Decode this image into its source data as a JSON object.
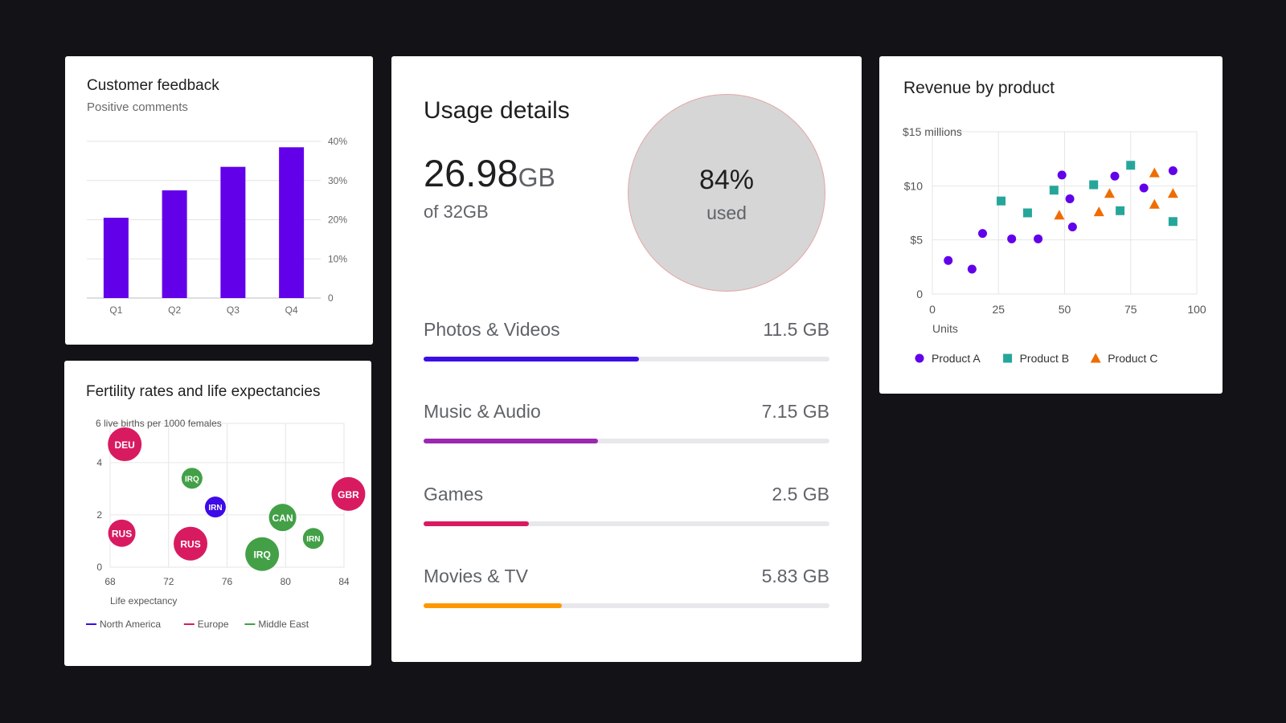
{
  "feedback": {
    "title": "Customer feedback",
    "subtitle": "Positive comments"
  },
  "fertility": {
    "title": "Fertility rates and life expectancies"
  },
  "usage": {
    "title": "Usage details",
    "used_value": "26.98",
    "used_unit": "GB",
    "capacity": "of 32GB",
    "percent_label": "84%",
    "percent_caption": "used",
    "categories": [
      {
        "name": "Photos & Videos",
        "size": "11.5 GB",
        "fraction": 0.53,
        "color": "#3b0ee8"
      },
      {
        "name": "Music & Audio",
        "size": "7.15 GB",
        "fraction": 0.43,
        "color": "#9c27b0"
      },
      {
        "name": "Games",
        "size": "2.5 GB",
        "fraction": 0.26,
        "color": "#d81b60"
      },
      {
        "name": "Movies & TV",
        "size": "5.83 GB",
        "fraction": 0.34,
        "color": "#ff9800"
      }
    ]
  },
  "revenue": {
    "title": "Revenue by product"
  },
  "chart_data": [
    {
      "id": "feedback",
      "type": "bar",
      "title": "Customer feedback",
      "subtitle": "Positive comments",
      "categories": [
        "Q1",
        "Q2",
        "Q3",
        "Q4"
      ],
      "values": [
        20.5,
        27.5,
        33.5,
        38.5
      ],
      "y_ticks": [
        "0",
        "10%",
        "20%",
        "30%",
        "40%"
      ],
      "ylim": [
        0,
        40
      ],
      "grid": true,
      "color": "#6200ea"
    },
    {
      "id": "fertility",
      "type": "scatter",
      "title": "Fertility rates and life expectancies",
      "xlabel": "Life expectancy",
      "ylabel": "6 live births per 1000 females",
      "x_ticks": [
        "68",
        "72",
        "76",
        "80",
        "84"
      ],
      "y_ticks": [
        "0",
        "2",
        "4"
      ],
      "xlim": [
        68,
        84
      ],
      "ylim": [
        0,
        5.5
      ],
      "legend_position": "bottom-left",
      "grid": true,
      "series": [
        {
          "name": "North America",
          "color": "#3d0ae8",
          "points": [
            {
              "x": 75.2,
              "y": 2.3,
              "label": "IRN",
              "size": 1
            }
          ]
        },
        {
          "name": "Europe",
          "color": "#d81b60",
          "points": [
            {
              "x": 69.0,
              "y": 4.7,
              "label": "DEU",
              "size": 3
            },
            {
              "x": 68.8,
              "y": 1.3,
              "label": "RUS",
              "size": 2
            },
            {
              "x": 73.5,
              "y": 0.9,
              "label": "RUS",
              "size": 3
            },
            {
              "x": 84.3,
              "y": 2.8,
              "label": "GBR",
              "size": 3
            }
          ]
        },
        {
          "name": "Middle East",
          "color": "#43a047",
          "points": [
            {
              "x": 73.6,
              "y": 3.4,
              "label": "IRQ",
              "size": 1
            },
            {
              "x": 79.8,
              "y": 1.9,
              "label": "CAN",
              "size": 2
            },
            {
              "x": 78.4,
              "y": 0.5,
              "label": "IRQ",
              "size": 3
            },
            {
              "x": 81.9,
              "y": 1.1,
              "label": "IRN",
              "size": 1
            }
          ]
        }
      ]
    },
    {
      "id": "revenue",
      "type": "scatter",
      "title": "Revenue by product",
      "xlabel": "Units",
      "ylabel": "$15 millions",
      "x_ticks": [
        "0",
        "25",
        "50",
        "75",
        "100"
      ],
      "y_ticks": [
        "0",
        "$5",
        "$10",
        "$15 millions"
      ],
      "xlim": [
        0,
        100
      ],
      "ylim": [
        0,
        15
      ],
      "legend_position": "bottom",
      "grid": true,
      "series": [
        {
          "name": "Product A",
          "color": "#6200ea",
          "marker": "circle",
          "points": [
            [
              6,
              3.1
            ],
            [
              15,
              2.3
            ],
            [
              19,
              5.6
            ],
            [
              30,
              5.1
            ],
            [
              40,
              5.1
            ],
            [
              49,
              11.0
            ],
            [
              52,
              8.8
            ],
            [
              53,
              6.2
            ],
            [
              69,
              10.9
            ],
            [
              80,
              9.8
            ],
            [
              91,
              11.4
            ]
          ]
        },
        {
          "name": "Product B",
          "color": "#26a69a",
          "marker": "square",
          "points": [
            [
              26,
              8.6
            ],
            [
              36,
              7.5
            ],
            [
              46,
              9.6
            ],
            [
              61,
              10.1
            ],
            [
              71,
              7.7
            ],
            [
              75,
              11.9
            ],
            [
              91,
              6.7
            ]
          ]
        },
        {
          "name": "Product C",
          "color": "#ef6c00",
          "marker": "triangle",
          "points": [
            [
              48,
              7.3
            ],
            [
              63,
              7.6
            ],
            [
              67,
              9.3
            ],
            [
              84,
              8.3
            ],
            [
              84,
              11.2
            ],
            [
              91,
              9.3
            ]
          ]
        }
      ]
    }
  ]
}
